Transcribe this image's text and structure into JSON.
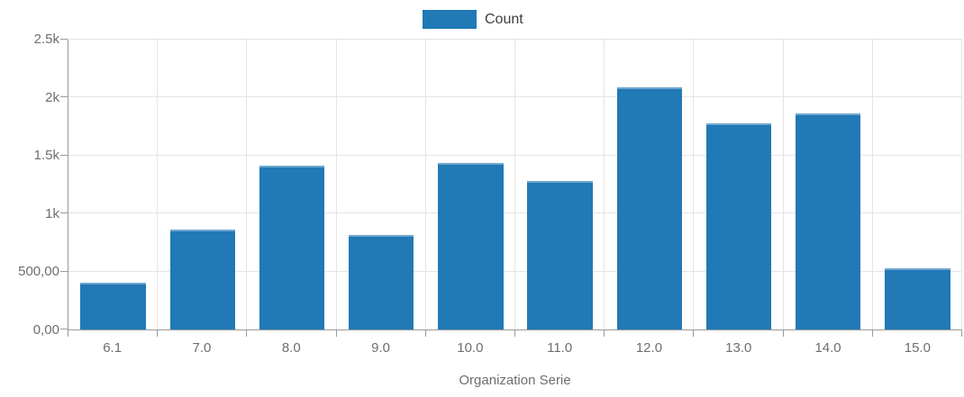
{
  "legend": {
    "items": [
      {
        "label": "Count",
        "color": "#2179b5"
      }
    ]
  },
  "chart_data": {
    "type": "bar",
    "title": "",
    "xlabel": "Organization Serie",
    "ylabel": "",
    "categories": [
      "6.1",
      "7.0",
      "8.0",
      "9.0",
      "10.0",
      "11.0",
      "12.0",
      "13.0",
      "14.0",
      "15.0"
    ],
    "series": [
      {
        "name": "Count",
        "color": "#2179b5",
        "values": [
          405,
          860,
          1415,
          815,
          1440,
          1285,
          2090,
          1780,
          1865,
          530
        ]
      }
    ],
    "ylim": [
      0,
      2500
    ],
    "yticks": [
      {
        "value": 0,
        "label": "0,00"
      },
      {
        "value": 500,
        "label": "500,00"
      },
      {
        "value": 1000,
        "label": "1k"
      },
      {
        "value": 1500,
        "label": "1.5k"
      },
      {
        "value": 2000,
        "label": "2k"
      },
      {
        "value": 2500,
        "label": "2.5k"
      }
    ],
    "grid": true,
    "legend_position": "top-center"
  },
  "colors": {
    "bar": "#2179b5",
    "bar_top_edge": "#6fa8cf",
    "grid": "#e4e4e4",
    "axis": "#9a9a9a",
    "tick_label": "#6e6e6e",
    "legend_text": "#3d3d3d",
    "background": "#ffffff"
  }
}
